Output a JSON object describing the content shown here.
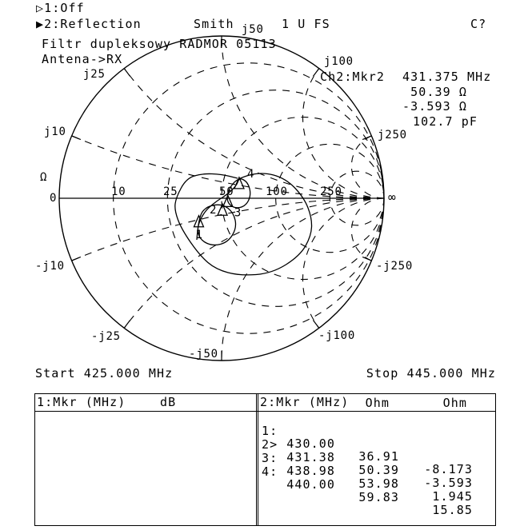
{
  "header": {
    "channel1": "▷1:Off",
    "channel2": "▶2:Reflection",
    "format": "Smith",
    "scale": "1 U FS",
    "cal_status": "C?"
  },
  "notes": {
    "title": "Filtr dupleksowy RADMOR 05113",
    "subtitle": "Antena->RX"
  },
  "marker_readout": {
    "label": "Ch2:Mkr2",
    "frequency": "431.375 MHz",
    "resistance": "50.39 Ω",
    "reactance": "-3.593 Ω",
    "equivalent": "102.7 pF"
  },
  "sweep": {
    "start": "Start 425.000 MHz",
    "stop": "Stop 445.000 MHz"
  },
  "table1": {
    "header": "1:Mkr (MHz)",
    "unit": "dB",
    "rows": []
  },
  "table2": {
    "header": "2:Mkr (MHz)",
    "col1": "Ohm",
    "col2": "Ohm",
    "rows": [
      {
        "id": "1:",
        "freq": "430.00",
        "r": "36.91",
        "x": "-8.173"
      },
      {
        "id": "2>",
        "freq": "431.38",
        "r": "50.39",
        "x": "-3.593"
      },
      {
        "id": "3:",
        "freq": "438.98",
        "r": "53.98",
        "x": "1.945"
      },
      {
        "id": "4:",
        "freq": "440.00",
        "r": "59.83",
        "x": "15.85"
      }
    ]
  },
  "chart_data": {
    "type": "smith",
    "reference_impedance_ohm": 50,
    "units_label": "Ω",
    "resistance_labels": [
      "0",
      "10",
      "25",
      "50",
      "100",
      "250",
      "∞"
    ],
    "reactance_labels": [
      "j10",
      "j25",
      "j50",
      "j100",
      "j250",
      "-j10",
      "-j25",
      "-j50",
      "-j100",
      "-j250"
    ],
    "resistance_grid_ohm": [
      10,
      25,
      50,
      100,
      250
    ],
    "reactance_grid_ohm": [
      10,
      25,
      50,
      100,
      250
    ],
    "grid": true,
    "start_mhz": 425.0,
    "stop_mhz": 445.0,
    "markers": [
      {
        "label": "1",
        "freq_mhz": 430.0,
        "r_ohm": 36.91,
        "x_ohm": -8.173
      },
      {
        "label": "2",
        "freq_mhz": 431.38,
        "r_ohm": 50.39,
        "x_ohm": -3.593,
        "active": true
      },
      {
        "label": "3",
        "freq_mhz": 438.98,
        "r_ohm": 53.98,
        "x_ohm": 1.945
      },
      {
        "label": "4",
        "freq_mhz": 440.0,
        "r_ohm": 59.83,
        "x_ohm": 15.85
      }
    ]
  }
}
